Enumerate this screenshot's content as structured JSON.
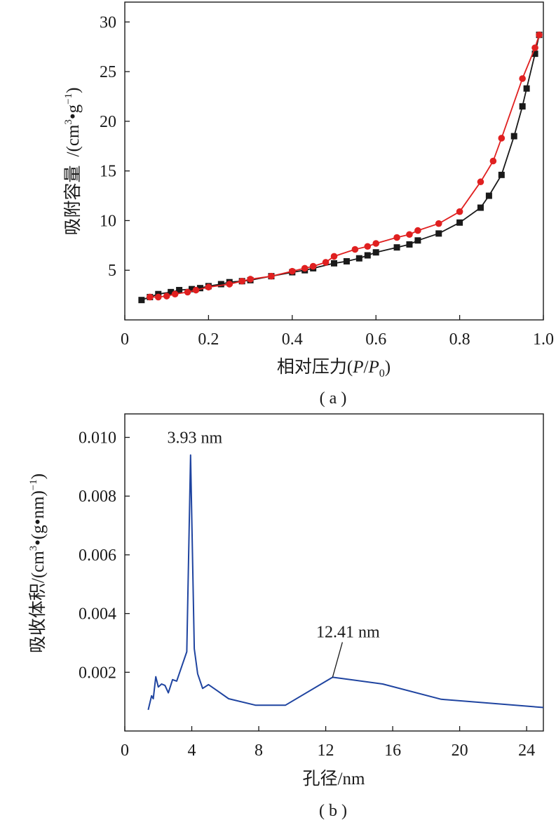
{
  "chart_data": [
    {
      "type": "line",
      "caption": "( a )",
      "xlabel_text": "相对压力(",
      "xlabel_P": "P",
      "xlabel_slash": "/",
      "xlabel_P0": "P",
      "xlabel_sub": "0",
      "xlabel_close": ")",
      "ylabel_text": "吸附容量",
      "ylabel_unit_pre": "/(cm",
      "ylabel_unit_sup3": "3",
      "ylabel_unit_mid": "•g",
      "ylabel_unit_sup": "−1",
      "ylabel_unit_close": ")",
      "xlim": [
        0,
        1.0
      ],
      "ylim": [
        0,
        32
      ],
      "x_ticks": [
        0,
        0.2,
        0.4,
        0.6,
        0.8,
        1.0
      ],
      "x_tick_labels": [
        "0",
        "0.2",
        "0.4",
        "0.6",
        "0.8",
        "1.0"
      ],
      "y_ticks": [
        5,
        10,
        15,
        20,
        25,
        30
      ],
      "y_tick_labels": [
        "5",
        "10",
        "15",
        "20",
        "25",
        "30"
      ],
      "grid": false,
      "series": [
        {
          "marker": "square",
          "color": "#1a1a1a",
          "x": [
            0.04,
            0.06,
            0.08,
            0.11,
            0.13,
            0.16,
            0.18,
            0.2,
            0.23,
            0.25,
            0.28,
            0.3,
            0.35,
            0.4,
            0.43,
            0.45,
            0.5,
            0.53,
            0.56,
            0.58,
            0.6,
            0.65,
            0.68,
            0.7,
            0.75,
            0.8,
            0.85,
            0.87,
            0.9,
            0.93,
            0.95,
            0.96,
            0.98,
            0.99
          ],
          "y": [
            2.0,
            2.3,
            2.6,
            2.8,
            3.0,
            3.1,
            3.2,
            3.4,
            3.6,
            3.8,
            3.9,
            4.0,
            4.4,
            4.8,
            5.0,
            5.2,
            5.7,
            5.9,
            6.2,
            6.5,
            6.8,
            7.3,
            7.6,
            8.0,
            8.7,
            9.8,
            11.3,
            12.5,
            14.6,
            18.5,
            21.5,
            23.3,
            26.8,
            28.7
          ]
        },
        {
          "marker": "circle",
          "color": "#e02020",
          "x": [
            0.06,
            0.08,
            0.1,
            0.12,
            0.15,
            0.17,
            0.2,
            0.25,
            0.28,
            0.3,
            0.35,
            0.4,
            0.43,
            0.45,
            0.48,
            0.5,
            0.55,
            0.58,
            0.6,
            0.65,
            0.68,
            0.7,
            0.75,
            0.8,
            0.85,
            0.88,
            0.9,
            0.95,
            0.98,
            0.99
          ],
          "y": [
            2.3,
            2.3,
            2.4,
            2.6,
            2.8,
            3.0,
            3.3,
            3.6,
            3.9,
            4.1,
            4.4,
            4.9,
            5.2,
            5.4,
            5.8,
            6.4,
            7.1,
            7.4,
            7.7,
            8.3,
            8.6,
            9.0,
            9.7,
            10.9,
            13.9,
            16.0,
            18.3,
            24.3,
            27.4,
            28.7
          ]
        }
      ]
    },
    {
      "type": "line",
      "caption": "( b )",
      "xlabel": "孔径/nm",
      "ylabel_pre": "吸收体积/(cm",
      "ylabel_sup3": "3",
      "ylabel_mid": "•(g•nm)",
      "ylabel_sup": "−1",
      "ylabel_close": ")",
      "xlim": [
        0,
        25
      ],
      "ylim": [
        0,
        0.0108
      ],
      "x_ticks": [
        0,
        4,
        8,
        12,
        16,
        20,
        24
      ],
      "x_tick_labels": [
        "0",
        "4",
        "8",
        "12",
        "16",
        "20",
        "24"
      ],
      "y_ticks": [
        0.002,
        0.004,
        0.006,
        0.008,
        0.01
      ],
      "y_tick_labels": [
        "0.002",
        "0.004",
        "0.006",
        "0.008",
        "0.010"
      ],
      "grid": false,
      "series": [
        {
          "color": "#1f44a0",
          "x": [
            1.4,
            1.6,
            1.7,
            1.85,
            2.0,
            2.2,
            2.4,
            2.6,
            2.85,
            3.1,
            3.4,
            3.7,
            3.93,
            4.15,
            4.35,
            4.65,
            5.0,
            5.5,
            6.2,
            7.8,
            9.6,
            12.41,
            15.4,
            18.9,
            25.0
          ],
          "y": [
            0.00072,
            0.0012,
            0.0011,
            0.00185,
            0.0015,
            0.0016,
            0.00155,
            0.0013,
            0.00175,
            0.0017,
            0.0022,
            0.0027,
            0.0094,
            0.0028,
            0.00195,
            0.00145,
            0.00158,
            0.00138,
            0.0011,
            0.00088,
            0.00088,
            0.00183,
            0.0016,
            0.00108,
            0.0008
          ]
        }
      ],
      "annotations": [
        {
          "text": "3.93 nm",
          "x": 3.93,
          "y": 0.0094
        },
        {
          "text": "12.41 nm",
          "x": 12.41,
          "y": 0.00183
        }
      ]
    }
  ]
}
